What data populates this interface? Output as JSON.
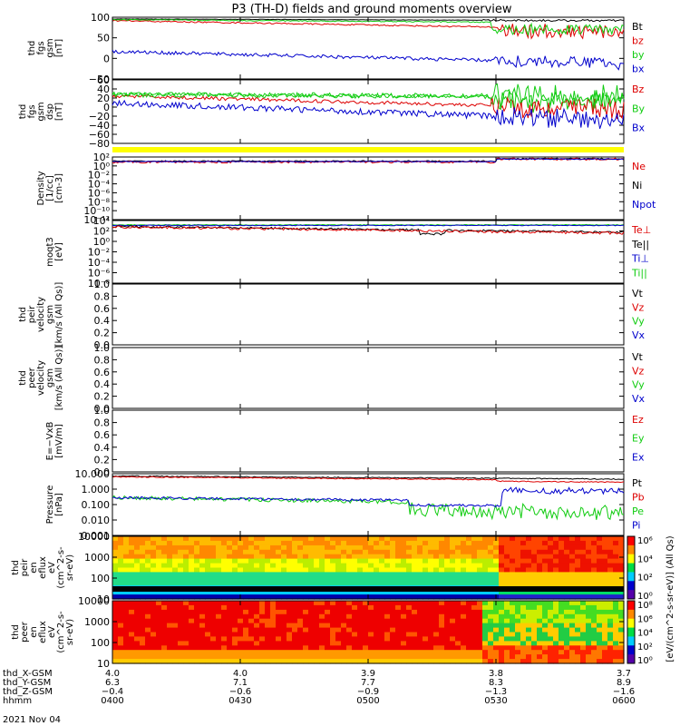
{
  "title": "P3 (TH-D) fields and ground moments overview",
  "date_label": "2021 Nov 04",
  "colors": {
    "black": "#000000",
    "red": "#dd0000",
    "green": "#11cc11",
    "blue": "#0000cc",
    "yellow": "#ffff00"
  },
  "chart_data": [
    {
      "type": "line",
      "ylabel_lines": [
        "thd",
        "fgs",
        "gsm",
        "[nT]"
      ],
      "y_ticks": [
        "100",
        "50",
        "0",
        "−50"
      ],
      "legend": [
        {
          "label": "Bt",
          "color": "black"
        },
        {
          "label": "bz",
          "color": "red"
        },
        {
          "label": "by",
          "color": "green"
        },
        {
          "label": "bx",
          "color": "blue"
        }
      ]
    },
    {
      "type": "line",
      "ylabel_lines": [
        "thd",
        "fgs",
        "gsm",
        "dsp",
        "[nT]"
      ],
      "y_ticks": [
        "60",
        "40",
        "20",
        "0",
        "−20",
        "−40",
        "−60",
        "−80"
      ],
      "legend": [
        {
          "label": "Bz",
          "color": "red"
        },
        {
          "label": "By",
          "color": "green"
        },
        {
          "label": "Bx",
          "color": "blue"
        }
      ]
    },
    {
      "type": "line",
      "ylabel_lines": [
        "Density",
        "[1/cc]",
        "[cm-3]"
      ],
      "y_ticks": [
        "10²",
        "10⁰",
        "10⁻²",
        "10⁻⁴",
        "10⁻⁶",
        "10⁻⁸",
        "10⁻¹⁰",
        "10⁻¹²"
      ],
      "legend": [
        {
          "label": "Ne",
          "color": "red"
        },
        {
          "label": "Ni",
          "color": "black"
        },
        {
          "label": "Npot",
          "color": "blue"
        }
      ]
    },
    {
      "type": "line",
      "ylabel_lines": [
        "moqt3",
        "[eV]"
      ],
      "y_ticks": [
        "10⁴",
        "10²",
        "10⁰",
        "10⁻²",
        "10⁻⁴",
        "10⁻⁶",
        "10⁻⁸"
      ],
      "legend": [
        {
          "label": "Te⊥",
          "color": "red"
        },
        {
          "label": "Te||",
          "color": "black"
        },
        {
          "label": "Ti⊥",
          "color": "blue"
        },
        {
          "label": "Ti||",
          "color": "green"
        }
      ]
    },
    {
      "type": "line",
      "ylabel_lines": [
        "thd",
        "peir",
        "velocity",
        "gsm",
        "[km/s (All Qs)]"
      ],
      "y_ticks": [
        "1.0",
        "0.8",
        "0.6",
        "0.4",
        "0.2",
        "0.0"
      ],
      "legend": [
        {
          "label": "Vt",
          "color": "black"
        },
        {
          "label": "Vz",
          "color": "red"
        },
        {
          "label": "Vy",
          "color": "green"
        },
        {
          "label": "Vx",
          "color": "blue"
        }
      ]
    },
    {
      "type": "line",
      "ylabel_lines": [
        "thd",
        "peer",
        "velocity",
        "gsm",
        "[km/s (All Qs)]"
      ],
      "y_ticks": [
        "1.0",
        "0.8",
        "0.6",
        "0.4",
        "0.2",
        "0.0"
      ],
      "legend": [
        {
          "label": "Vt",
          "color": "black"
        },
        {
          "label": "Vz",
          "color": "red"
        },
        {
          "label": "Vy",
          "color": "green"
        },
        {
          "label": "Vx",
          "color": "blue"
        }
      ]
    },
    {
      "type": "line",
      "ylabel_lines": [
        "E=−VxB",
        "[mV/m]"
      ],
      "y_ticks": [
        "1.0",
        "0.8",
        "0.6",
        "0.4",
        "0.2",
        "0.0"
      ],
      "legend": [
        {
          "label": "Ez",
          "color": "red"
        },
        {
          "label": "Ey",
          "color": "green"
        },
        {
          "label": "Ex",
          "color": "blue"
        }
      ]
    },
    {
      "type": "line",
      "ylabel_lines": [
        "Pressure",
        "[nPa]"
      ],
      "y_ticks": [
        "10.000",
        "1.000",
        "0.100",
        "0.010",
        "0.001"
      ],
      "legend": [
        {
          "label": "Pt",
          "color": "black"
        },
        {
          "label": "Pb",
          "color": "red"
        },
        {
          "label": "Pe",
          "color": "green"
        },
        {
          "label": "Pi",
          "color": "blue"
        }
      ]
    },
    {
      "type": "heatmap",
      "ylabel_lines": [
        "thd",
        "peir",
        "en",
        "eflux",
        "eV",
        "(cm^2-s-",
        "sr-eV)"
      ],
      "y_ticks": [
        "10000",
        "1000",
        "100",
        "10"
      ]
    },
    {
      "type": "heatmap",
      "ylabel_lines": [
        "thd",
        "peer",
        "en",
        "eflux",
        "eV",
        "(cm^2-s-",
        "sr-eV)"
      ],
      "y_ticks": [
        "10000",
        "1000",
        "100",
        "10"
      ]
    }
  ],
  "colorbar": {
    "label": "[eV/(cm^2-s-sr-eV)] (All Qs)",
    "top_ticks": [
      "10⁶",
      "10⁴",
      "10²",
      "10⁰"
    ],
    "bottom_ticks": [
      "10⁸",
      "10⁶",
      "10⁴",
      "10²",
      "10⁰"
    ]
  },
  "x_axis": {
    "row_labels": [
      "thd_X-GSM",
      "thd_Y-GSM",
      "thd_Z-GSM",
      "hhmm"
    ],
    "ticks": [
      {
        "x": "4.0",
        "y": "6.3",
        "z": "−0.4",
        "t": "0400"
      },
      {
        "x": "4.0",
        "y": "7.1",
        "z": "−0.6",
        "t": "0430"
      },
      {
        "x": "3.9",
        "y": "7.7",
        "z": "−0.9",
        "t": "0500"
      },
      {
        "x": "3.8",
        "y": "8.3",
        "z": "−1.3",
        "t": "0530"
      },
      {
        "x": "3.7",
        "y": "8.9",
        "z": "−1.6",
        "t": "0600"
      }
    ]
  }
}
